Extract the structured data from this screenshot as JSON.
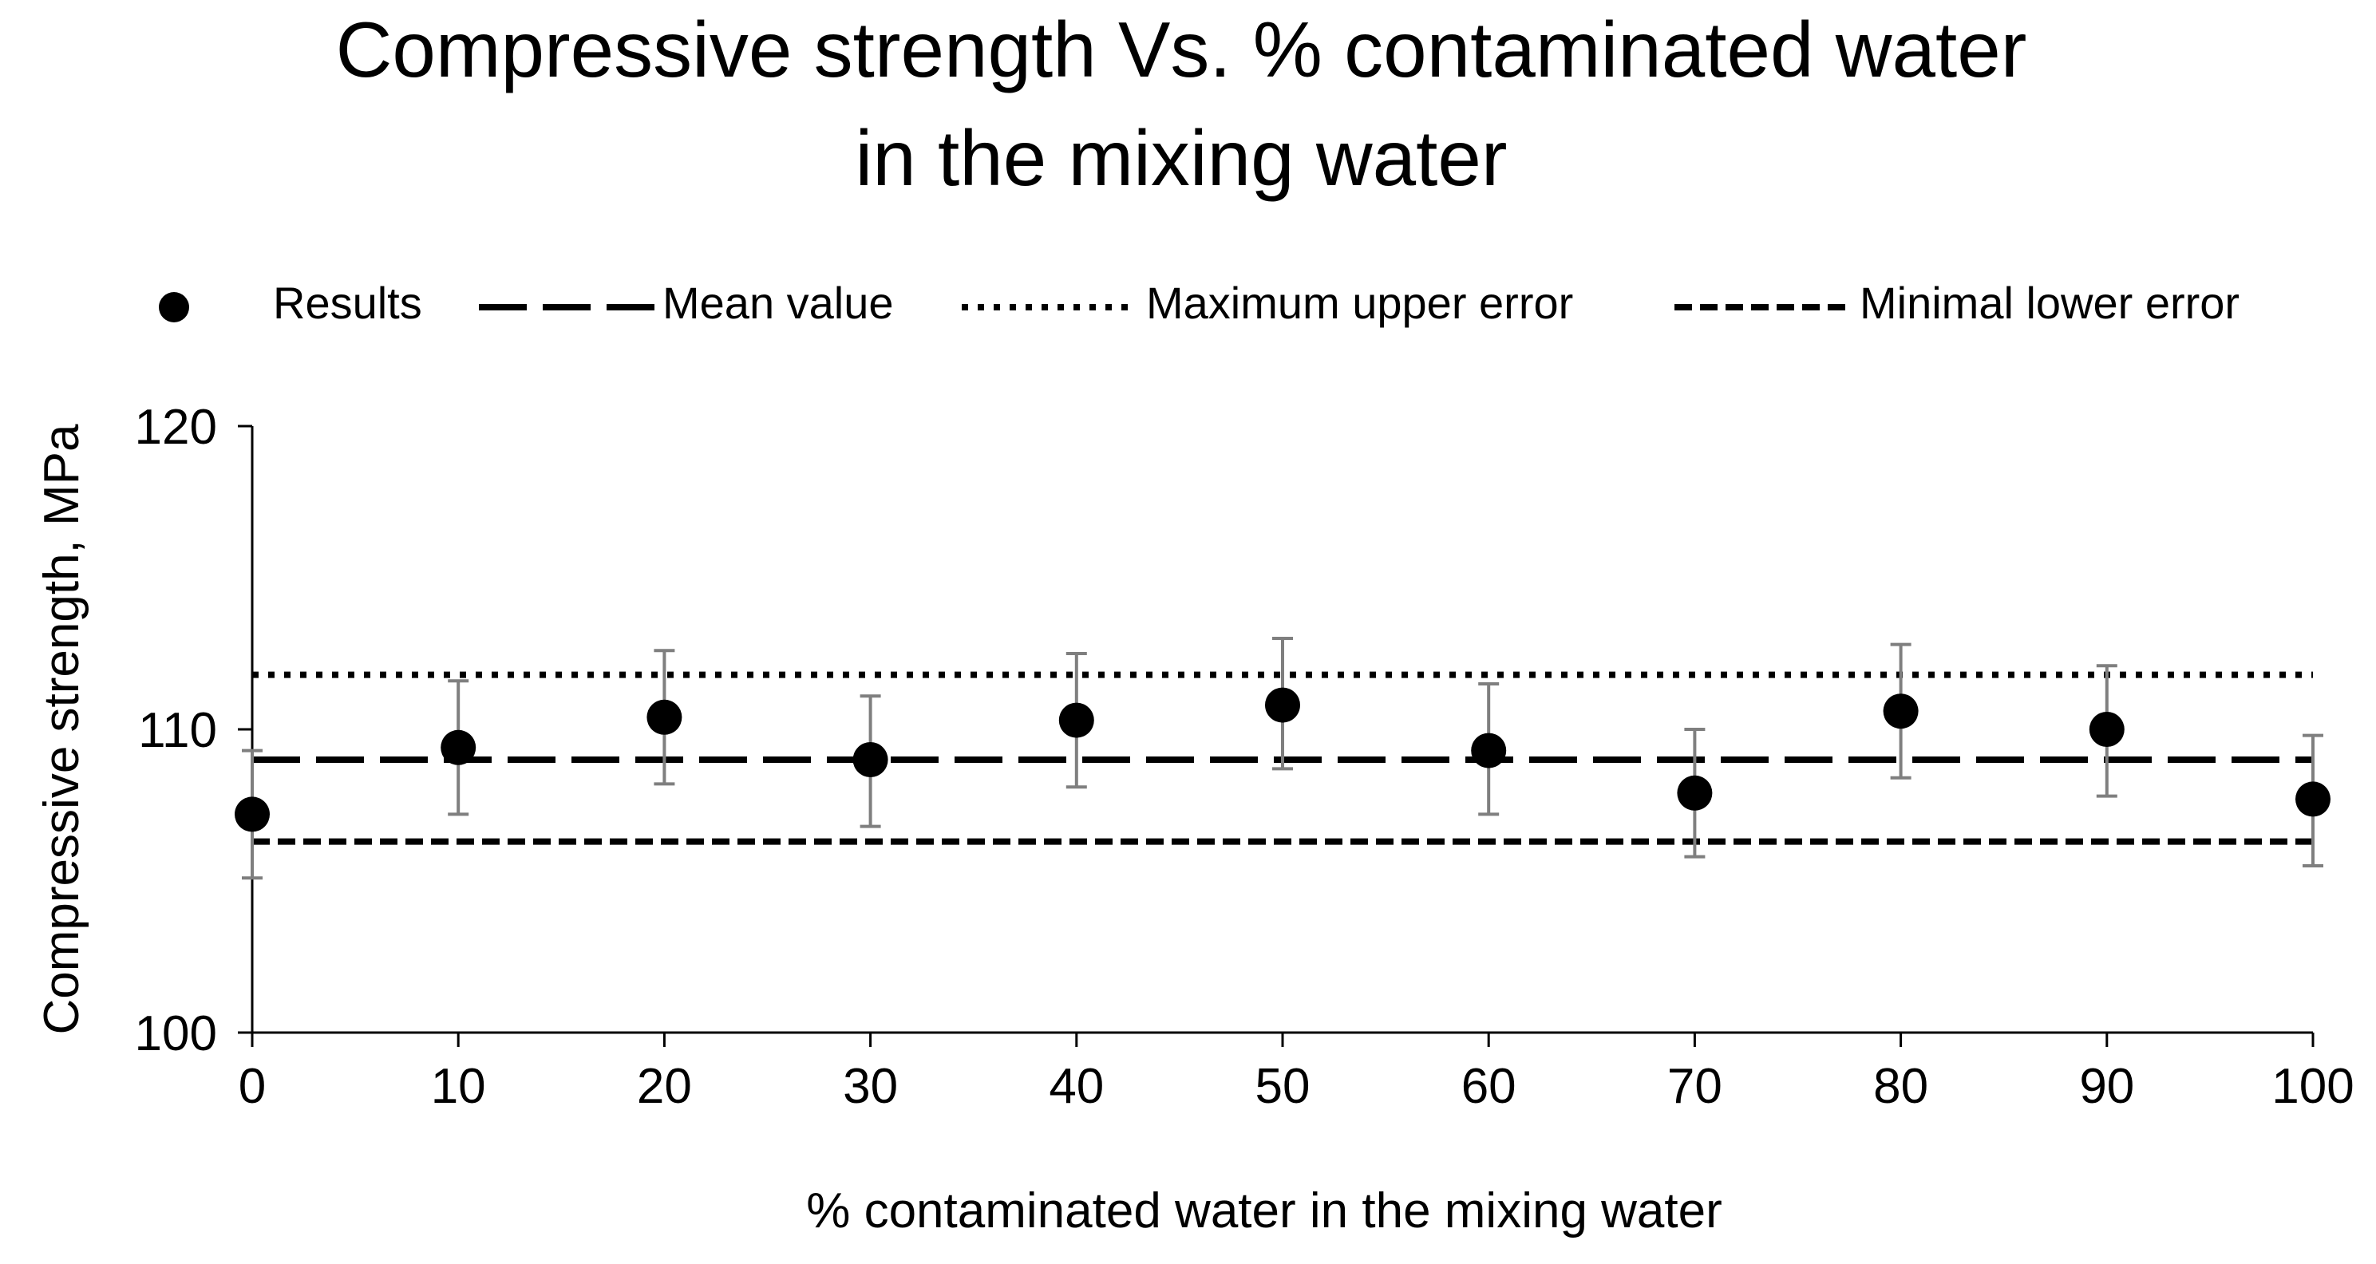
{
  "chart_data": {
    "type": "scatter",
    "title": [
      "Compressive strength Vs. % contaminated water",
      "in the mixing water"
    ],
    "xlabel": "% contaminated water in the mixing water",
    "ylabel": "Compressive strength, MPa",
    "xlim": [
      0,
      100
    ],
    "ylim": [
      100,
      120
    ],
    "x_ticks": [
      0,
      10,
      20,
      30,
      40,
      50,
      60,
      70,
      80,
      90,
      100
    ],
    "y_ticks": [
      100,
      110,
      120
    ],
    "legend_position": "top",
    "legend": {
      "results": "Results",
      "mean": "Mean value",
      "max_upper": "Maximum upper error",
      "min_lower": "Minimal lower error"
    },
    "series": [
      {
        "name": "Results",
        "x": [
          0,
          10,
          20,
          30,
          40,
          50,
          60,
          70,
          80,
          90,
          100
        ],
        "y": [
          107.2,
          109.4,
          110.4,
          109.0,
          110.3,
          110.8,
          109.3,
          107.9,
          110.6,
          110.0,
          107.7
        ],
        "error_upper": [
          109.3,
          111.6,
          112.6,
          111.1,
          112.5,
          113.0,
          111.5,
          110.0,
          112.8,
          112.1,
          109.8
        ],
        "error_lower": [
          105.1,
          107.2,
          108.2,
          106.8,
          108.1,
          108.7,
          107.2,
          105.8,
          108.4,
          107.8,
          105.5
        ]
      }
    ],
    "reference_lines": {
      "mean": 109.0,
      "max_upper": 111.8,
      "min_lower": 106.3
    },
    "colors": {
      "marker": "#000000",
      "error_bar": "#7f7f7f",
      "axis": "#000000"
    }
  }
}
